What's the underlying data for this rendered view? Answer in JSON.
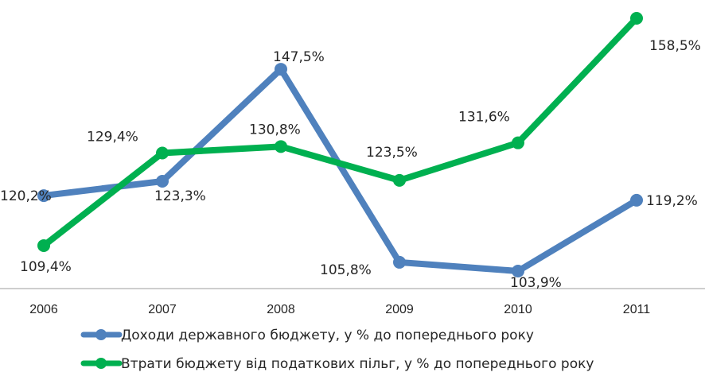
{
  "chart_data": {
    "type": "line",
    "title": "",
    "xlabel": "",
    "ylabel": "",
    "x": [
      "2006",
      "2007",
      "2008",
      "2009",
      "2010",
      "2011"
    ],
    "ylim": [
      95,
      165
    ],
    "grid": false,
    "legend": "bottom",
    "series": [
      {
        "name": "Доходи державного бюджету, у % до попереднього року",
        "color": "#4f81bd",
        "values": [
          120.2,
          123.3,
          147.5,
          105.8,
          103.9,
          119.2
        ],
        "labels": [
          "120,2%",
          "123,3%",
          "147,5%",
          "105,8%",
          "103,9%",
          "119,2%"
        ]
      },
      {
        "name": "Втрати бюджету від податкових пільг, у % до попереднього року",
        "color": "#00b050",
        "values": [
          109.4,
          129.4,
          130.8,
          123.5,
          131.6,
          158.5
        ],
        "labels": [
          "109,4%",
          "129,4%",
          "130,8%",
          "123,5%",
          "131,6%",
          "158,5%"
        ]
      }
    ]
  }
}
